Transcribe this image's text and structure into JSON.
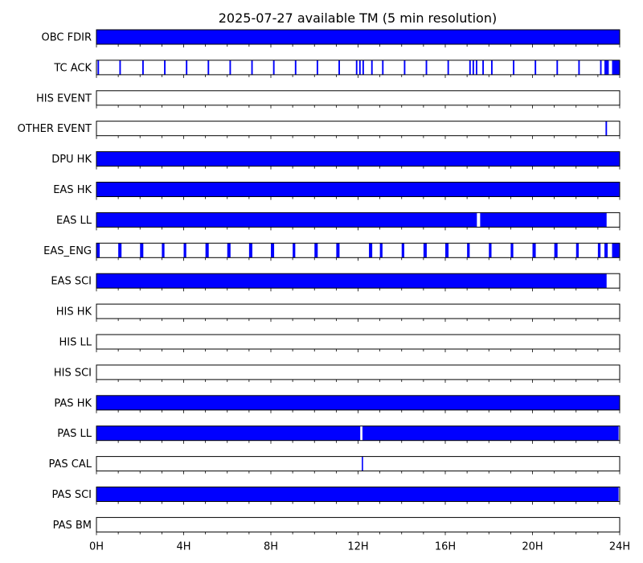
{
  "chart_data": {
    "type": "timeline",
    "title": "2025-07-27 available TM (5 min resolution)",
    "x_unit": "hours",
    "xlim": [
      0,
      24
    ],
    "x_ticks": [
      0,
      4,
      8,
      12,
      16,
      20,
      24
    ],
    "x_tick_labels": [
      "0H",
      "4H",
      "8H",
      "12H",
      "16H",
      "20H",
      "24H"
    ],
    "minor_tick_step_hours": 1,
    "grid": false,
    "fill_color": "#0000ff",
    "rows": [
      {
        "label": "OBC FDIR",
        "intervals": [
          [
            0,
            24
          ]
        ]
      },
      {
        "label": "TC ACK",
        "intervals": [
          [
            0.05,
            0.12
          ],
          [
            1.05,
            1.12
          ],
          [
            2.1,
            2.17
          ],
          [
            3.1,
            3.17
          ],
          [
            4.1,
            4.17
          ],
          [
            5.1,
            5.17
          ],
          [
            6.1,
            6.17
          ],
          [
            7.1,
            7.17
          ],
          [
            8.1,
            8.17
          ],
          [
            9.1,
            9.17
          ],
          [
            10.1,
            10.17
          ],
          [
            11.1,
            11.17
          ],
          [
            11.9,
            11.97
          ],
          [
            12.05,
            12.12
          ],
          [
            12.2,
            12.27
          ],
          [
            12.6,
            12.67
          ],
          [
            13.1,
            13.17
          ],
          [
            14.1,
            14.17
          ],
          [
            15.1,
            15.17
          ],
          [
            16.1,
            16.17
          ],
          [
            17.1,
            17.17
          ],
          [
            17.25,
            17.32
          ],
          [
            17.4,
            17.47
          ],
          [
            17.7,
            17.77
          ],
          [
            18.1,
            18.17
          ],
          [
            19.1,
            19.17
          ],
          [
            20.1,
            20.17
          ],
          [
            21.1,
            21.17
          ],
          [
            22.1,
            22.17
          ],
          [
            23.1,
            23.17
          ],
          [
            23.3,
            23.5
          ],
          [
            23.65,
            24
          ]
        ]
      },
      {
        "label": "HIS EVENT",
        "intervals": []
      },
      {
        "label": "OTHER EVENT",
        "intervals": [
          [
            23.35,
            23.42
          ]
        ]
      },
      {
        "label": "DPU HK",
        "intervals": [
          [
            0,
            24
          ]
        ]
      },
      {
        "label": "EAS HK",
        "intervals": [
          [
            0,
            24
          ]
        ]
      },
      {
        "label": "EAS LL",
        "intervals": [
          [
            0,
            17.45
          ],
          [
            17.6,
            23.4
          ]
        ]
      },
      {
        "label": "EAS_ENG",
        "intervals": [
          [
            0.02,
            0.15
          ],
          [
            1.0,
            1.15
          ],
          [
            2.0,
            2.15
          ],
          [
            3.0,
            3.12
          ],
          [
            4.0,
            4.12
          ],
          [
            5.0,
            5.15
          ],
          [
            6.0,
            6.15
          ],
          [
            7.0,
            7.15
          ],
          [
            8.0,
            8.15
          ],
          [
            9.0,
            9.12
          ],
          [
            10.0,
            10.15
          ],
          [
            11.0,
            11.15
          ],
          [
            12.5,
            12.65
          ],
          [
            13.0,
            13.12
          ],
          [
            14.0,
            14.12
          ],
          [
            15.0,
            15.15
          ],
          [
            16.0,
            16.15
          ],
          [
            17.0,
            17.12
          ],
          [
            18.0,
            18.12
          ],
          [
            19.0,
            19.12
          ],
          [
            20.0,
            20.15
          ],
          [
            21.0,
            21.15
          ],
          [
            22.0,
            22.12
          ],
          [
            23.0,
            23.12
          ],
          [
            23.3,
            23.45
          ],
          [
            23.65,
            24
          ]
        ]
      },
      {
        "label": "EAS SCI",
        "intervals": [
          [
            0,
            23.4
          ]
        ]
      },
      {
        "label": "HIS HK",
        "intervals": []
      },
      {
        "label": "HIS LL",
        "intervals": []
      },
      {
        "label": "HIS SCI",
        "intervals": []
      },
      {
        "label": "PAS HK",
        "intervals": [
          [
            0,
            24
          ]
        ]
      },
      {
        "label": "PAS LL",
        "intervals": [
          [
            0,
            12.1
          ],
          [
            12.2,
            23.95
          ]
        ]
      },
      {
        "label": "PAS CAL",
        "intervals": [
          [
            12.17,
            12.23
          ]
        ]
      },
      {
        "label": "PAS SCI",
        "intervals": [
          [
            0,
            23.95
          ]
        ]
      },
      {
        "label": "PAS BM",
        "intervals": []
      }
    ]
  }
}
